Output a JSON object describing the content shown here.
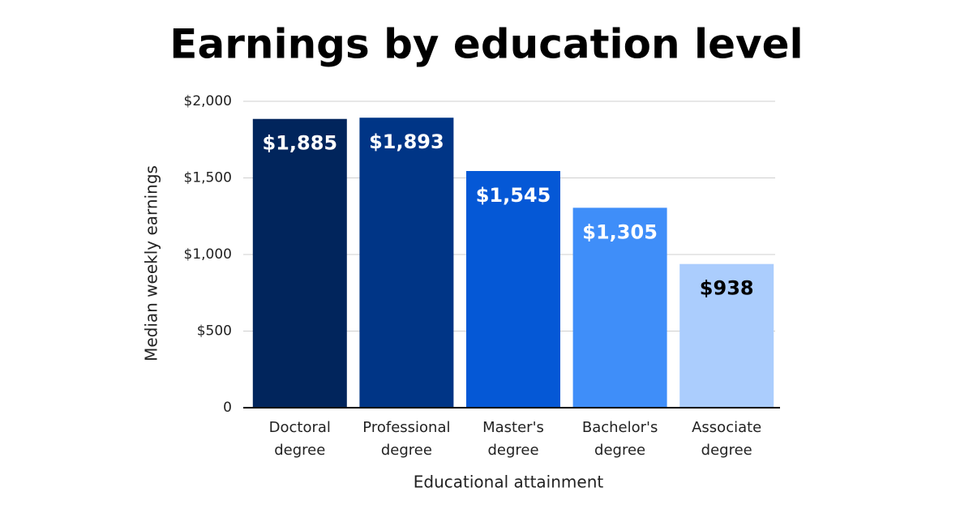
{
  "chart_data": {
    "type": "bar",
    "title": "Earnings by education level",
    "x_label": "Educational attainment",
    "y_label": "Median weekly earnings",
    "categories": [
      "Doctoral degree",
      "Professional degree",
      "Master's degree",
      "Bachelor's degree",
      "Associate degree"
    ],
    "values": [
      1885,
      1893,
      1545,
      1305,
      938
    ],
    "value_labels": [
      "$1,885",
      "$1,893",
      "$1,545",
      "$1,305",
      "$938"
    ],
    "colors": [
      "#01255c",
      "#003586",
      "#0558d6",
      "#3f8ef9",
      "#abcdfd"
    ],
    "label_colors": [
      "#ffffff",
      "#ffffff",
      "#ffffff",
      "#ffffff",
      "#000000"
    ],
    "ylim": [
      0,
      2000
    ],
    "yticks": [
      0,
      {
        "value": 500,
        "label": "$500"
      },
      {
        "value": 1000,
        "label": "$1,000"
      },
      {
        "value": 1500,
        "label": "$1,500"
      },
      {
        "value": 2000,
        "label": "$2,000"
      }
    ],
    "grid": true
  }
}
